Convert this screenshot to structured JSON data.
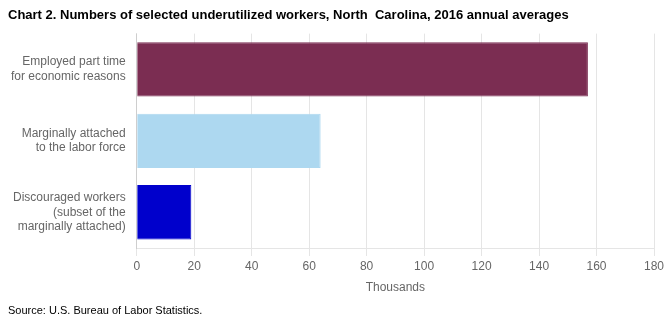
{
  "chart_data": {
    "type": "bar",
    "orientation": "horizontal",
    "title": "Chart 2. Numbers of selected underutilized workers, North  Carolina, 2016 annual averages",
    "categories": [
      "Discouraged workers\n(subset of the\nmarginally attached)",
      "Marginally attached\nto the labor force",
      "Employed part time\nfor economic reasons"
    ],
    "values": [
      19,
      64,
      157
    ],
    "colors": [
      "#0000cc",
      "#add8f0",
      "#7b2d52"
    ],
    "xlabel": "Thousands",
    "xlim": [
      0,
      180
    ],
    "xticks": [
      0,
      20,
      40,
      60,
      80,
      100,
      120,
      140,
      160,
      180
    ],
    "grid": true,
    "source": "Source: U.S. Bureau of Labor Statistics."
  }
}
